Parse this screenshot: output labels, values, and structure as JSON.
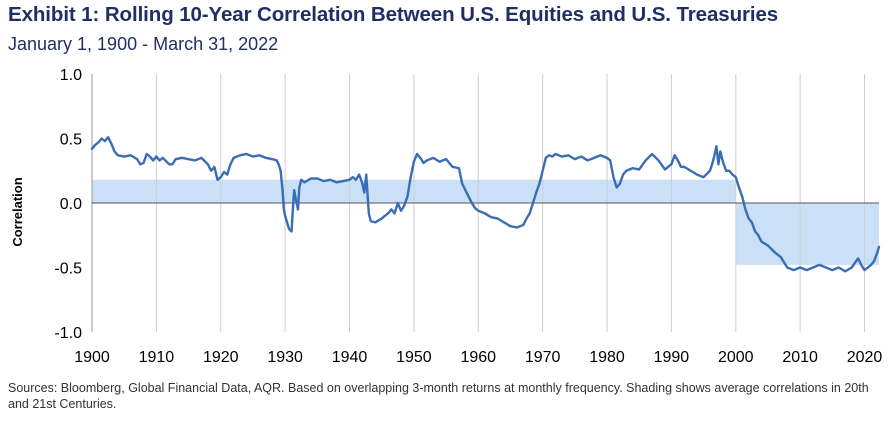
{
  "chart_data": {
    "type": "line",
    "title": "Exhibit 1: Rolling 10-Year Correlation Between U.S. Equities and U.S. Treasuries",
    "subtitle": "January 1, 1900 - March 31, 2022",
    "xlabel": "",
    "ylabel": "Correlation",
    "xlim": [
      1900,
      2022.25
    ],
    "ylim": [
      -1.0,
      1.0
    ],
    "x_ticks": [
      1900,
      1910,
      1920,
      1930,
      1940,
      1950,
      1960,
      1970,
      1980,
      1990,
      2000,
      2010,
      2020
    ],
    "y_ticks": [
      1.0,
      0.5,
      0.0,
      -0.5,
      -1.0
    ],
    "y_tick_labels": [
      "1.0",
      "0.5",
      "0.0",
      "-0.5",
      "-1.0"
    ],
    "grid": "vertical",
    "series": [
      {
        "name": "Rolling 10-Year Correlation",
        "color": "#3a6db5",
        "points": [
          [
            1900.0,
            0.42
          ],
          [
            1900.5,
            0.45
          ],
          [
            1901.0,
            0.47
          ],
          [
            1901.5,
            0.5
          ],
          [
            1902.0,
            0.48
          ],
          [
            1902.5,
            0.51
          ],
          [
            1903.0,
            0.46
          ],
          [
            1903.5,
            0.4
          ],
          [
            1904.0,
            0.37
          ],
          [
            1905.0,
            0.36
          ],
          [
            1906.0,
            0.37
          ],
          [
            1907.0,
            0.34
          ],
          [
            1907.5,
            0.3
          ],
          [
            1908.0,
            0.31
          ],
          [
            1908.5,
            0.38
          ],
          [
            1909.0,
            0.36
          ],
          [
            1909.5,
            0.33
          ],
          [
            1910.0,
            0.36
          ],
          [
            1910.5,
            0.33
          ],
          [
            1911.0,
            0.35
          ],
          [
            1912.0,
            0.3
          ],
          [
            1912.5,
            0.3
          ],
          [
            1913.0,
            0.34
          ],
          [
            1914.0,
            0.35
          ],
          [
            1915.0,
            0.34
          ],
          [
            1916.0,
            0.33
          ],
          [
            1917.0,
            0.35
          ],
          [
            1918.0,
            0.3
          ],
          [
            1918.5,
            0.25
          ],
          [
            1919.0,
            0.28
          ],
          [
            1919.5,
            0.18
          ],
          [
            1920.0,
            0.2
          ],
          [
            1920.5,
            0.24
          ],
          [
            1921.0,
            0.22
          ],
          [
            1921.5,
            0.3
          ],
          [
            1922.0,
            0.35
          ],
          [
            1923.0,
            0.37
          ],
          [
            1924.0,
            0.38
          ],
          [
            1925.0,
            0.36
          ],
          [
            1926.0,
            0.37
          ],
          [
            1927.0,
            0.35
          ],
          [
            1928.0,
            0.34
          ],
          [
            1928.7,
            0.33
          ],
          [
            1929.0,
            0.3
          ],
          [
            1929.3,
            0.25
          ],
          [
            1929.6,
            0.1
          ],
          [
            1929.8,
            -0.05
          ],
          [
            1930.0,
            -0.1
          ],
          [
            1930.3,
            -0.15
          ],
          [
            1930.6,
            -0.2
          ],
          [
            1931.0,
            -0.22
          ],
          [
            1931.2,
            -0.05
          ],
          [
            1931.4,
            0.1
          ],
          [
            1931.7,
            0.02
          ],
          [
            1932.0,
            -0.05
          ],
          [
            1932.2,
            0.12
          ],
          [
            1932.5,
            0.18
          ],
          [
            1933.0,
            0.16
          ],
          [
            1934.0,
            0.19
          ],
          [
            1935.0,
            0.19
          ],
          [
            1936.0,
            0.17
          ],
          [
            1937.0,
            0.18
          ],
          [
            1938.0,
            0.16
          ],
          [
            1939.0,
            0.17
          ],
          [
            1940.0,
            0.18
          ],
          [
            1940.5,
            0.2
          ],
          [
            1941.0,
            0.18
          ],
          [
            1941.5,
            0.22
          ],
          [
            1942.0,
            0.15
          ],
          [
            1942.3,
            0.08
          ],
          [
            1942.6,
            0.22
          ],
          [
            1943.0,
            -0.08
          ],
          [
            1943.3,
            -0.14
          ],
          [
            1944.0,
            -0.15
          ],
          [
            1945.0,
            -0.12
          ],
          [
            1946.0,
            -0.08
          ],
          [
            1946.5,
            -0.05
          ],
          [
            1947.0,
            -0.08
          ],
          [
            1947.5,
            0.0
          ],
          [
            1948.0,
            -0.06
          ],
          [
            1948.5,
            -0.02
          ],
          [
            1949.0,
            0.05
          ],
          [
            1949.5,
            0.2
          ],
          [
            1950.0,
            0.32
          ],
          [
            1950.5,
            0.38
          ],
          [
            1951.0,
            0.35
          ],
          [
            1951.5,
            0.31
          ],
          [
            1952.0,
            0.33
          ],
          [
            1953.0,
            0.35
          ],
          [
            1954.0,
            0.32
          ],
          [
            1955.0,
            0.34
          ],
          [
            1956.0,
            0.28
          ],
          [
            1957.0,
            0.27
          ],
          [
            1957.5,
            0.15
          ],
          [
            1958.0,
            0.1
          ],
          [
            1958.5,
            0.05
          ],
          [
            1959.0,
            0.0
          ],
          [
            1959.5,
            -0.04
          ],
          [
            1960.0,
            -0.06
          ],
          [
            1961.0,
            -0.08
          ],
          [
            1962.0,
            -0.11
          ],
          [
            1963.0,
            -0.12
          ],
          [
            1964.0,
            -0.15
          ],
          [
            1965.0,
            -0.18
          ],
          [
            1966.0,
            -0.19
          ],
          [
            1967.0,
            -0.17
          ],
          [
            1967.5,
            -0.12
          ],
          [
            1968.0,
            -0.08
          ],
          [
            1968.5,
            0.0
          ],
          [
            1969.0,
            0.08
          ],
          [
            1969.5,
            0.15
          ],
          [
            1970.0,
            0.25
          ],
          [
            1970.5,
            0.35
          ],
          [
            1971.0,
            0.37
          ],
          [
            1971.5,
            0.36
          ],
          [
            1972.0,
            0.38
          ],
          [
            1973.0,
            0.36
          ],
          [
            1974.0,
            0.37
          ],
          [
            1975.0,
            0.34
          ],
          [
            1976.0,
            0.36
          ],
          [
            1977.0,
            0.33
          ],
          [
            1978.0,
            0.35
          ],
          [
            1979.0,
            0.37
          ],
          [
            1980.0,
            0.35
          ],
          [
            1980.5,
            0.33
          ],
          [
            1981.0,
            0.2
          ],
          [
            1981.5,
            0.12
          ],
          [
            1982.0,
            0.15
          ],
          [
            1982.5,
            0.22
          ],
          [
            1983.0,
            0.25
          ],
          [
            1984.0,
            0.27
          ],
          [
            1985.0,
            0.26
          ],
          [
            1986.0,
            0.33
          ],
          [
            1987.0,
            0.38
          ],
          [
            1988.0,
            0.33
          ],
          [
            1989.0,
            0.26
          ],
          [
            1990.0,
            0.3
          ],
          [
            1990.5,
            0.37
          ],
          [
            1991.0,
            0.33
          ],
          [
            1991.5,
            0.28
          ],
          [
            1992.0,
            0.28
          ],
          [
            1993.0,
            0.25
          ],
          [
            1994.0,
            0.22
          ],
          [
            1995.0,
            0.2
          ],
          [
            1996.0,
            0.25
          ],
          [
            1996.5,
            0.33
          ],
          [
            1997.0,
            0.44
          ],
          [
            1997.3,
            0.3
          ],
          [
            1997.6,
            0.4
          ],
          [
            1998.0,
            0.32
          ],
          [
            1998.5,
            0.25
          ],
          [
            1999.0,
            0.25
          ],
          [
            1999.5,
            0.22
          ],
          [
            2000.0,
            0.2
          ],
          [
            2000.5,
            0.12
          ],
          [
            2001.0,
            0.05
          ],
          [
            2001.5,
            -0.05
          ],
          [
            2002.0,
            -0.12
          ],
          [
            2002.5,
            -0.15
          ],
          [
            2003.0,
            -0.22
          ],
          [
            2003.5,
            -0.25
          ],
          [
            2004.0,
            -0.3
          ],
          [
            2005.0,
            -0.33
          ],
          [
            2006.0,
            -0.38
          ],
          [
            2007.0,
            -0.42
          ],
          [
            2008.0,
            -0.5
          ],
          [
            2009.0,
            -0.52
          ],
          [
            2010.0,
            -0.5
          ],
          [
            2011.0,
            -0.52
          ],
          [
            2012.0,
            -0.5
          ],
          [
            2013.0,
            -0.48
          ],
          [
            2014.0,
            -0.5
          ],
          [
            2015.0,
            -0.52
          ],
          [
            2016.0,
            -0.5
          ],
          [
            2017.0,
            -0.53
          ],
          [
            2018.0,
            -0.5
          ],
          [
            2019.0,
            -0.43
          ],
          [
            2019.5,
            -0.48
          ],
          [
            2020.0,
            -0.52
          ],
          [
            2020.5,
            -0.5
          ],
          [
            2021.0,
            -0.48
          ],
          [
            2021.5,
            -0.45
          ],
          [
            2022.0,
            -0.38
          ],
          [
            2022.25,
            -0.34
          ]
        ]
      }
    ],
    "shading": [
      {
        "label": "20th Century average",
        "x_start": 1900,
        "x_end": 2000,
        "value": 0.18
      },
      {
        "label": "21st Century average",
        "x_start": 2000,
        "x_end": 2022.25,
        "value": -0.48
      }
    ]
  },
  "footnote": "Sources: Bloomberg, Global Financial Data, AQR. Based on overlapping 3-month returns at monthly frequency. Shading shows average correlations in 20th and 21st Centuries.",
  "colors": {
    "title": "#1f2f66",
    "line": "#3a6db5",
    "shade": "#c9e0f6",
    "grid": "#cfcfcf",
    "axis": "#999999"
  }
}
